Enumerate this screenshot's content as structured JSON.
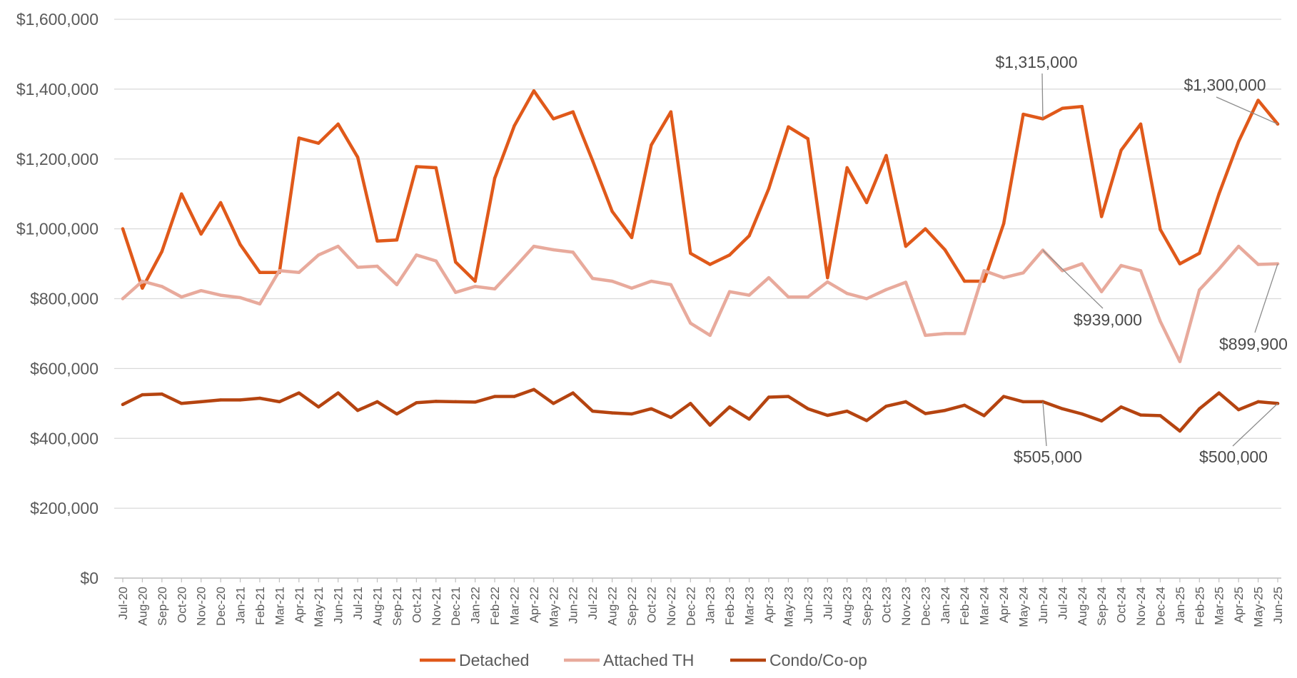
{
  "chart_data": {
    "type": "line",
    "title": "",
    "xlabel": "",
    "ylabel": "",
    "ylim": [
      0,
      1600000
    ],
    "yticks": [
      0,
      200000,
      400000,
      600000,
      800000,
      1000000,
      1200000,
      1400000,
      1600000
    ],
    "ytick_labels": [
      "$0",
      "$200,000",
      "$400,000",
      "$600,000",
      "$800,000",
      "$1,000,000",
      "$1,200,000",
      "$1,400,000",
      "$1,600,000"
    ],
    "grid": "horizontal",
    "legend_position": "bottom-center",
    "categories": [
      "Jul-20",
      "Aug-20",
      "Sep-20",
      "Oct-20",
      "Nov-20",
      "Dec-20",
      "Jan-21",
      "Feb-21",
      "Mar-21",
      "Apr-21",
      "May-21",
      "Jun-21",
      "Jul-21",
      "Aug-21",
      "Sep-21",
      "Oct-21",
      "Nov-21",
      "Dec-21",
      "Jan-22",
      "Feb-22",
      "Mar-22",
      "Apr-22",
      "May-22",
      "Jun-22",
      "Jul-22",
      "Aug-22",
      "Sep-22",
      "Oct-22",
      "Nov-22",
      "Dec-22",
      "Jan-23",
      "Feb-23",
      "Mar-23",
      "Apr-23",
      "May-23",
      "Jun-23",
      "Jul-23",
      "Aug-23",
      "Sep-23",
      "Oct-23",
      "Nov-23",
      "Dec-23",
      "Jan-24",
      "Feb-24",
      "Mar-24",
      "Apr-24",
      "May-24",
      "Jun-24",
      "Jul-24",
      "Aug-24",
      "Sep-24",
      "Oct-24",
      "Nov-24",
      "Dec-24",
      "Jan-25",
      "Feb-25",
      "Mar-25",
      "Apr-25",
      "May-25",
      "Jun-25"
    ],
    "series": [
      {
        "name": "Detached",
        "color": "#e0591a",
        "values": [
          1000000,
          830000,
          935000,
          1100000,
          985000,
          1075000,
          955000,
          875000,
          875000,
          1260000,
          1245000,
          1300000,
          1205000,
          965000,
          968000,
          1178000,
          1175000,
          905000,
          850000,
          1145000,
          1295000,
          1395000,
          1315000,
          1335000,
          1195000,
          1050000,
          975000,
          1240000,
          1335000,
          930000,
          898000,
          925000,
          980000,
          1115000,
          1292000,
          1258000,
          860000,
          1175000,
          1075000,
          1210000,
          950000,
          1000000,
          940000,
          850000,
          850000,
          1015000,
          1328000,
          1315000,
          1345000,
          1350000,
          1035000,
          1225000,
          1300000,
          998000,
          900000,
          930000,
          1100000,
          1250000,
          1368000,
          1300000
        ]
      },
      {
        "name": "Attached TH",
        "color": "#e8aa9c",
        "values": [
          800000,
          850000,
          835000,
          805000,
          823000,
          810000,
          803000,
          785000,
          880000,
          875000,
          925000,
          950000,
          890000,
          893000,
          840000,
          925000,
          908000,
          818000,
          835000,
          828000,
          888000,
          950000,
          940000,
          933000,
          858000,
          850000,
          830000,
          850000,
          840000,
          730000,
          695000,
          820000,
          810000,
          860000,
          805000,
          805000,
          848000,
          815000,
          800000,
          826000,
          847000,
          695000,
          700000,
          700000,
          880000,
          860000,
          874000,
          939000,
          880000,
          900000,
          820000,
          895000,
          880000,
          735000,
          620000,
          825000,
          885000,
          950000,
          898000,
          899900
        ]
      },
      {
        "name": "Condo/Co-op",
        "color": "#b54410",
        "values": [
          497000,
          525000,
          527000,
          500000,
          505000,
          510000,
          510000,
          515000,
          505000,
          530000,
          490000,
          530000,
          480000,
          505000,
          470000,
          502000,
          506000,
          505000,
          504000,
          520000,
          520000,
          540000,
          500000,
          530000,
          478000,
          473000,
          470000,
          485000,
          460000,
          500000,
          438000,
          490000,
          455000,
          518000,
          520000,
          485000,
          466000,
          478000,
          451000,
          492000,
          505000,
          471000,
          480000,
          495000,
          465000,
          520000,
          505000,
          505000,
          485000,
          470000,
          450000,
          490000,
          467000,
          465000,
          421000,
          485000,
          530000,
          482000,
          505000,
          500000
        ]
      }
    ],
    "annotations": [
      {
        "label": "$1,315,000",
        "series": "Detached",
        "category": "Jun-24"
      },
      {
        "label": "$1,300,000",
        "series": "Detached",
        "category": "Jun-25"
      },
      {
        "label": "$939,000",
        "series": "Attached TH",
        "category": "Jun-24"
      },
      {
        "label": "$899,900",
        "series": "Attached TH",
        "category": "Jun-25"
      },
      {
        "label": "$505,000",
        "series": "Condo/Co-op",
        "category": "Jun-24"
      },
      {
        "label": "$500,000",
        "series": "Condo/Co-op",
        "category": "Jun-25"
      }
    ]
  }
}
